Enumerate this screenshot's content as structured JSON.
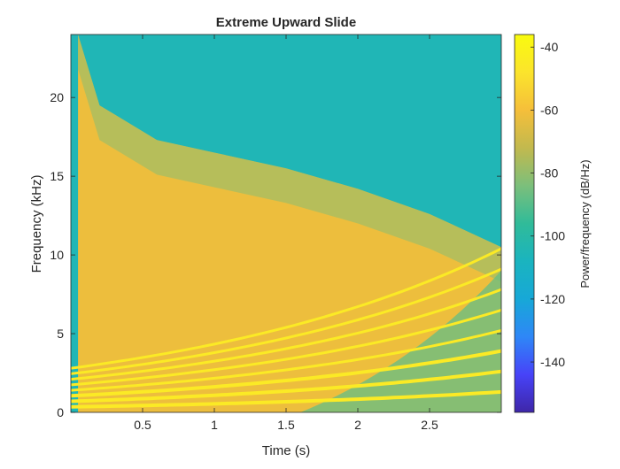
{
  "chart_data": {
    "type": "heatmap",
    "title": "Extreme Upward Slide",
    "xlabel": "Time (s)",
    "ylabel": "Frequency (kHz)",
    "xlim": [
      0,
      3.0
    ],
    "ylim": [
      0,
      24
    ],
    "xticks": [
      0.5,
      1,
      1.5,
      2,
      2.5
    ],
    "xtick_labels": [
      "0.5",
      "1",
      "1.5",
      "2",
      "2.5"
    ],
    "yticks": [
      0,
      5,
      10,
      15,
      20
    ],
    "ytick_labels": [
      "0",
      "5",
      "10",
      "15",
      "20"
    ],
    "colorbar": {
      "label": "Power/frequency (dB/Hz)",
      "range": [
        -156,
        -36
      ],
      "ticks": [
        -40,
        -60,
        -80,
        -100,
        -120,
        -140
      ],
      "tick_labels": [
        "-40",
        "-60",
        "-80",
        "-100",
        "-120",
        "-140"
      ],
      "colormap": "parula",
      "colors": [
        "#3e26a8",
        "#4743f8",
        "#2e87f7",
        "#17a8d7",
        "#1ab4bf",
        "#30bb99",
        "#7cbf7b",
        "#c2b94e",
        "#f5bf3a",
        "#fbe42c",
        "#f9fb0e"
      ]
    },
    "description_values": {
      "background_power_db": -105,
      "harmonic_region_power_db": -62,
      "ridge_power_db": -45,
      "upper_content_boundary_khz": [
        [
          0.05,
          24
        ],
        [
          0.2,
          19.5
        ],
        [
          0.6,
          17.3
        ],
        [
          1.0,
          16.5
        ],
        [
          1.5,
          15.5
        ],
        [
          2.0,
          14.2
        ],
        [
          2.5,
          12.6
        ],
        [
          3.0,
          10.5
        ]
      ],
      "fundamental_start_khz": 0.35,
      "fundamental_end_khz": 1.3,
      "harmonic_count": 8
    }
  }
}
